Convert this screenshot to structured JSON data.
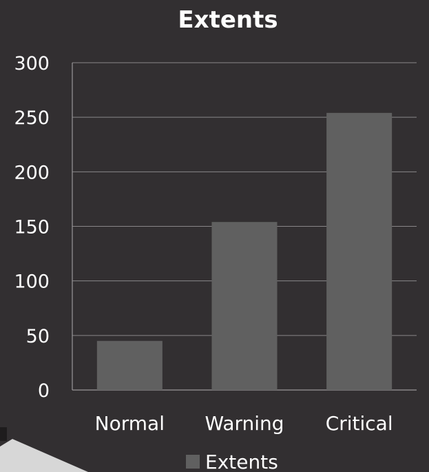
{
  "colors": {
    "background": "#322f31",
    "bar": "#606060",
    "text": "#ffffff",
    "grid": "#8a8789"
  },
  "chart_data": {
    "type": "bar",
    "title": "Extents",
    "xlabel": "",
    "ylabel": "",
    "categories": [
      "Normal",
      "Warning",
      "Critical"
    ],
    "series": [
      {
        "name": "Extents",
        "values": [
          45,
          154,
          254
        ]
      }
    ],
    "ylim": [
      0,
      300
    ],
    "yticks": [
      0,
      50,
      100,
      150,
      200,
      250,
      300
    ],
    "grid": true,
    "legend": "bottom"
  }
}
